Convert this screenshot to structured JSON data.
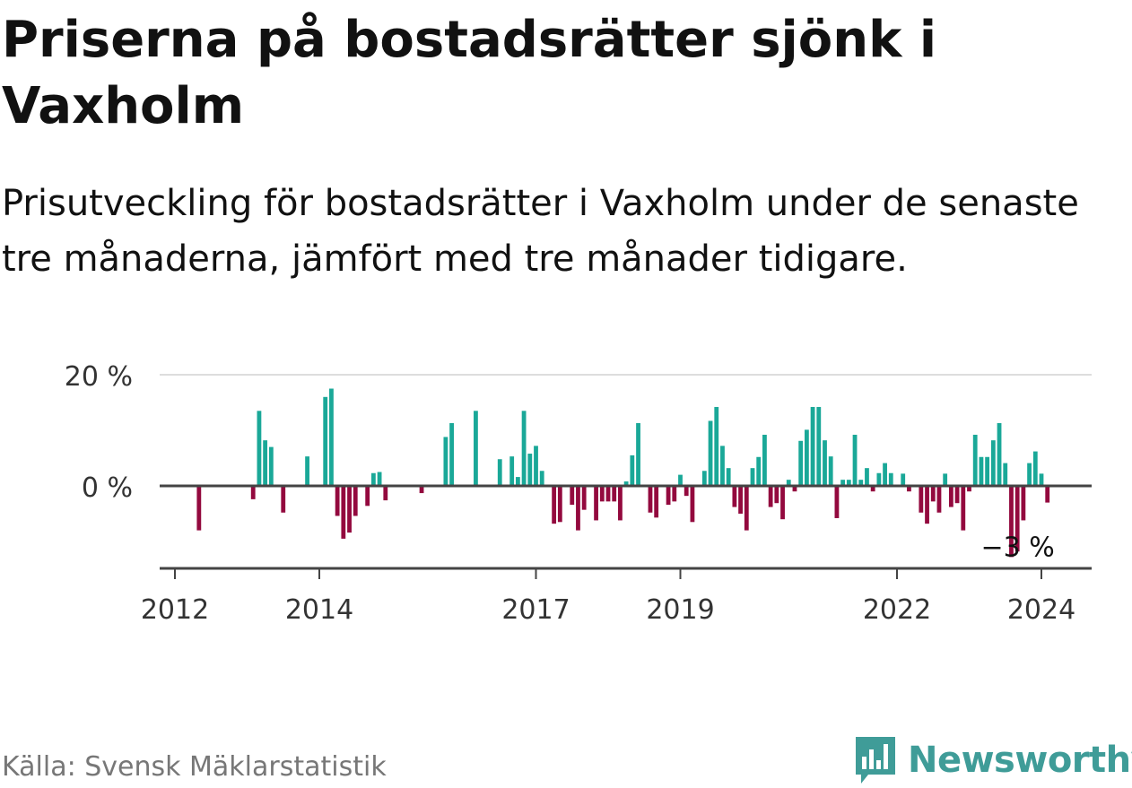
{
  "title": "Priserna på bostadsrätter sjönk i Vaxholm",
  "subtitle": "Prisutveckling för bostadsrätter i Vaxholm under de senaste tre månaderna, jämfört med tre månader tidigare.",
  "source": "Källa: Svensk Mäklarstatistik",
  "brand": "Newsworthy",
  "colors": {
    "positive": "#1aa898",
    "negative": "#93093e",
    "brand": "#3f9c98",
    "grid": "#dddddd",
    "axis": "#444444"
  },
  "chart_data": {
    "type": "bar",
    "ylim": [
      -14,
      20
    ],
    "y_ticks": [
      {
        "value": 20,
        "label": "20 %"
      },
      {
        "value": 0,
        "label": "0 %"
      }
    ],
    "x_ticks": [
      {
        "year": 2012,
        "label": "2012"
      },
      {
        "year": 2014,
        "label": "2014"
      },
      {
        "year": 2017,
        "label": "2017"
      },
      {
        "year": 2019,
        "label": "2019"
      },
      {
        "year": 2022,
        "label": "2022"
      },
      {
        "year": 2024,
        "label": "2024"
      }
    ],
    "start": {
      "year": 2012,
      "month": 1
    },
    "annotation": {
      "label": "−3 %",
      "value": -3
    },
    "values": [
      0,
      0,
      0,
      0,
      -8,
      0,
      0,
      0,
      0,
      0,
      0,
      0,
      0,
      -2.4,
      13.5,
      8.2,
      7,
      0,
      -4.8,
      0,
      0,
      0,
      5.3,
      0,
      0,
      16,
      17.5,
      -5.4,
      -9.5,
      -8.4,
      -5.4,
      0,
      -3.6,
      2.3,
      2.5,
      -2.6,
      0,
      0,
      0,
      0,
      0,
      -1.3,
      0,
      0,
      0,
      8.8,
      11.3,
      0,
      0,
      0,
      13.5,
      0,
      0,
      0,
      4.8,
      0,
      5.3,
      1.6,
      13.5,
      5.8,
      7.2,
      2.7,
      0,
      -6.8,
      -6.5,
      0,
      -3.4,
      -8,
      -4.3,
      0,
      -6.2,
      -2.8,
      -2.8,
      -2.8,
      -6.2,
      0.8,
      5.5,
      11.3,
      0,
      -4.8,
      -5.7,
      0,
      -3.4,
      -2.8,
      2,
      -1.8,
      -6.5,
      0,
      2.7,
      11.7,
      14.2,
      7.2,
      3.2,
      -3.8,
      -5,
      -8,
      3.2,
      5.2,
      9.2,
      -3.8,
      -3.1,
      -6,
      1.1,
      -1,
      8.1,
      10.1,
      14.2,
      14.2,
      8.2,
      5.3,
      -5.8,
      1.1,
      1.1,
      9.2,
      1.1,
      3.2,
      -1,
      2.3,
      4.1,
      2.3,
      0,
      2.2,
      -1,
      0,
      -4.8,
      -6.8,
      -2.8,
      -4.8,
      2.2,
      -3.8,
      -3.1,
      -8,
      -1,
      9.2,
      5.2,
      5.2,
      8.2,
      11.3,
      4.1,
      -12.8,
      -11.8,
      -6.2,
      4.1,
      6.2,
      2.2,
      -3
    ]
  }
}
